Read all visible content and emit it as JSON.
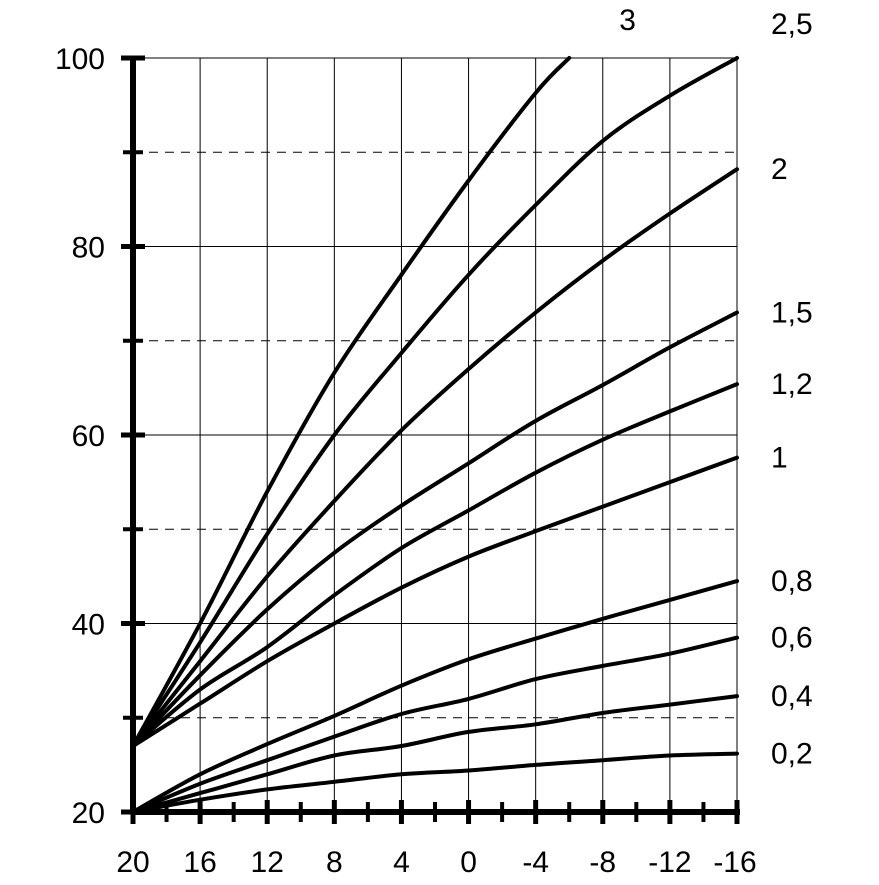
{
  "chart_data": {
    "type": "line",
    "title": "",
    "xlabel": "",
    "ylabel": "",
    "xlim": [
      20,
      -16
    ],
    "ylim": [
      20,
      100
    ],
    "x_ticks": [
      20,
      16,
      12,
      8,
      4,
      0,
      -4,
      -8,
      -12,
      -16
    ],
    "x_tick_labels": [
      "20",
      "16",
      "12",
      "8",
      "4",
      "0",
      "-4",
      "-8",
      "-12",
      "-16"
    ],
    "x_minor_ticks": [
      18,
      14,
      10,
      6,
      2,
      -2,
      -6,
      -10,
      -14
    ],
    "y_ticks": [
      20,
      40,
      60,
      80,
      100
    ],
    "y_tick_labels": [
      "20",
      "40",
      "60",
      "80",
      "100"
    ],
    "y_dashed_gridlines": [
      30,
      50,
      70,
      90
    ],
    "grid": true,
    "series": [
      {
        "name": "0,2",
        "x": [
          20,
          16,
          12,
          8,
          4,
          0,
          -4,
          -8,
          -12,
          -16
        ],
        "y": [
          20,
          21.3,
          22.4,
          23.2,
          24,
          24.4,
          25,
          25.5,
          26,
          26.2
        ]
      },
      {
        "name": "0,4",
        "x": [
          20,
          16,
          12,
          8,
          4,
          0,
          -4,
          -8,
          -12,
          -16
        ],
        "y": [
          20,
          22,
          24,
          26,
          27,
          28.5,
          29.3,
          30.5,
          31.4,
          32.3
        ]
      },
      {
        "name": "0,6",
        "x": [
          20,
          16,
          12,
          8,
          4,
          0,
          -4,
          -8,
          -12,
          -16
        ],
        "y": [
          20,
          23,
          25.5,
          28,
          30.4,
          32,
          34.1,
          35.5,
          36.8,
          38.5
        ]
      },
      {
        "name": "0,8",
        "x": [
          20,
          16,
          12,
          8,
          4,
          0,
          -4,
          -8,
          -12,
          -16
        ],
        "y": [
          20,
          24,
          27.2,
          30.2,
          33.4,
          36.2,
          38.4,
          40.5,
          42.5,
          44.5
        ]
      },
      {
        "name": "1",
        "x": [
          20,
          16,
          12,
          8,
          4,
          0,
          -4,
          -8,
          -12,
          -16
        ],
        "y": [
          27,
          31.5,
          36,
          40,
          43.8,
          47.1,
          49.8,
          52.4,
          55,
          57.6
        ]
      },
      {
        "name": "1,2",
        "x": [
          20,
          16,
          12,
          8,
          4,
          0,
          -4,
          -8,
          -12,
          -16
        ],
        "y": [
          27,
          33,
          37.5,
          43,
          48,
          52,
          56,
          59.5,
          62.5,
          65.4
        ]
      },
      {
        "name": "1,5",
        "x": [
          20,
          16,
          12,
          8,
          4,
          0,
          -4,
          -8,
          -12,
          -16
        ],
        "y": [
          27,
          34.5,
          41.5,
          47.5,
          52.5,
          57,
          61.5,
          65.3,
          69.3,
          73
        ]
      },
      {
        "name": "2",
        "x": [
          20,
          16,
          12,
          8,
          4,
          0,
          -4,
          -8,
          -12,
          -16
        ],
        "y": [
          27,
          36,
          45,
          53,
          60.5,
          67,
          73,
          78.5,
          83.5,
          88.2
        ]
      },
      {
        "name": "2,5",
        "x": [
          20,
          16,
          12,
          8,
          4,
          0,
          -4,
          -8,
          -12,
          -16
        ],
        "y": [
          27,
          38,
          49.5,
          60,
          68.7,
          77,
          84.4,
          91.2,
          96,
          100
        ]
      },
      {
        "name": "3",
        "x": [
          20,
          16,
          12,
          8,
          4,
          0,
          -4,
          -6
        ],
        "y": [
          27,
          40,
          54,
          66.6,
          77,
          87,
          96.3,
          100
        ]
      }
    ],
    "curve_labels": [
      {
        "text": "3",
        "series": "3"
      },
      {
        "text": "2,5",
        "series": "2,5"
      },
      {
        "text": "2",
        "series": "2"
      },
      {
        "text": "1,5",
        "series": "1,5"
      },
      {
        "text": "1,2",
        "series": "1,2"
      },
      {
        "text": "1",
        "series": "1"
      },
      {
        "text": "0,8",
        "series": "0,8"
      },
      {
        "text": "0,6",
        "series": "0,6"
      },
      {
        "text": "0,4",
        "series": "0,4"
      },
      {
        "text": "0,2",
        "series": "0,2"
      }
    ]
  }
}
